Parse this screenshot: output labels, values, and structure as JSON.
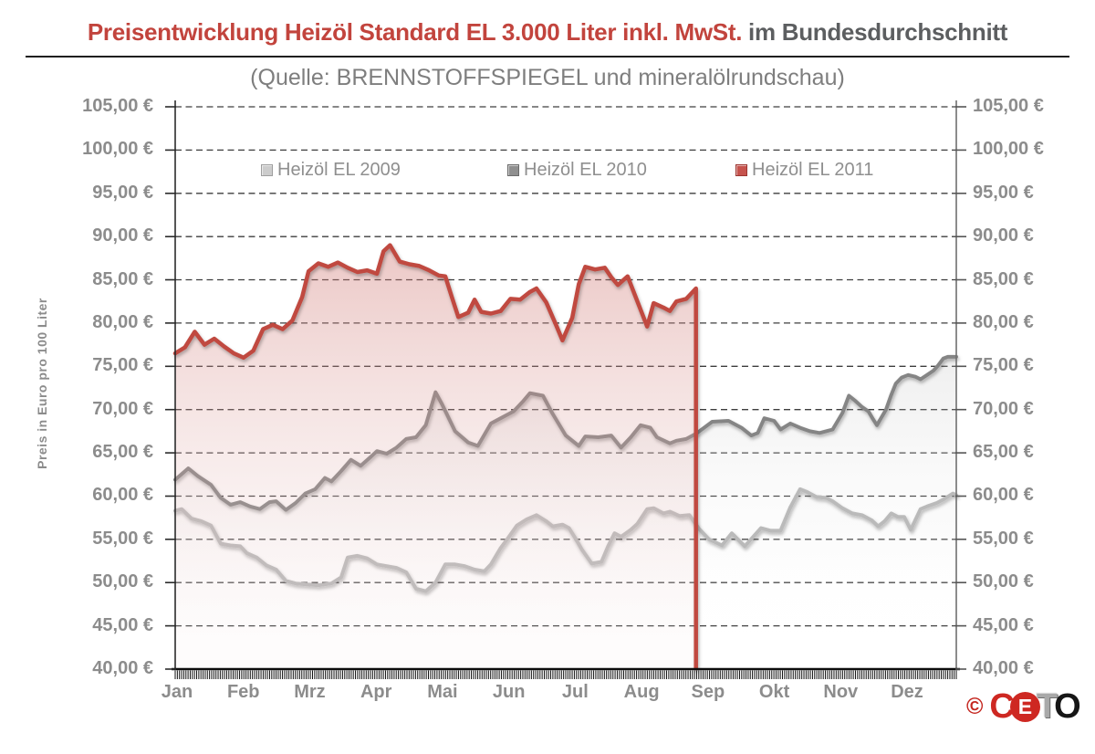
{
  "title": {
    "red_part": "Preisentwicklung Heizöl Standard EL 3.000 Liter inkl. MwSt.",
    "gray_part": " im Bundesdurchschnitt"
  },
  "subtitle": "(Quelle: BRENNSTOFFSPIEGEL und mineralölrundschau)",
  "y_axis": {
    "unit_label": "Preis in Euro pro 100 Liter",
    "tick_labels": [
      "105,00 €",
      "100,00 €",
      "95,00 €",
      "90,00 €",
      "85,00 €",
      "80,00 €",
      "75,00 €",
      "70,00 €",
      "65,00 €",
      "60,00 €",
      "55,00 €",
      "50,00 €",
      "45,00 €",
      "40,00 €"
    ],
    "min": 40,
    "max": 105,
    "step": 5
  },
  "x_axis": {
    "months": [
      "Jan",
      "Feb",
      "Mrz",
      "Apr",
      "Mai",
      "Jun",
      "Jul",
      "Aug",
      "Sep",
      "Okt",
      "Nov",
      "Dez"
    ]
  },
  "legend": [
    {
      "label": "Heizöl EL 2009",
      "line_color": "#b5b5b5",
      "swatch_bg": "#cccccc",
      "swatch_border": "#9e9e9e"
    },
    {
      "label": "Heizöl EL 2010",
      "line_color": "#858585",
      "swatch_bg": "#8f8f8f",
      "swatch_border": "#6b6b6b"
    },
    {
      "label": "Heizöl EL 2011",
      "line_color": "#c0483f",
      "swatch_bg": "#c6534d",
      "swatch_border": "#9c3531"
    }
  ],
  "logo": {
    "copyright": "©",
    "c": "C",
    "e": "E",
    "t": "T",
    "o": "O"
  },
  "chart_data": {
    "type": "area",
    "title": "Preisentwicklung Heizöl Standard EL 3.000 Liter inkl. MwSt. im Bundesdurchschnitt",
    "xlabel": "",
    "ylabel": "Preis in Euro pro 100 Liter",
    "ylim": [
      40,
      105
    ],
    "x_unit": "months, 0 = 1. Jan, 12 = 31. Dez",
    "grid": "dashed horizontal every 5 EUR",
    "legend_position": "top inside",
    "series": [
      {
        "name": "Heizöl EL 2009",
        "color": "#b5b5b5",
        "points": [
          [
            0,
            58.3
          ],
          [
            0.1,
            58.5
          ],
          [
            0.25,
            57.4
          ],
          [
            0.4,
            57.1
          ],
          [
            0.55,
            56.6
          ],
          [
            0.7,
            54.5
          ],
          [
            0.85,
            54.3
          ],
          [
            1,
            54.2
          ],
          [
            1.1,
            53.4
          ],
          [
            1.25,
            52.9
          ],
          [
            1.4,
            52
          ],
          [
            1.55,
            51.5
          ],
          [
            1.7,
            50.2
          ],
          [
            1.85,
            49.9
          ],
          [
            2,
            49.8
          ],
          [
            2.2,
            49.7
          ],
          [
            2.4,
            49.9
          ],
          [
            2.55,
            50.6
          ],
          [
            2.65,
            52.9
          ],
          [
            2.8,
            53.1
          ],
          [
            2.95,
            52.8
          ],
          [
            3.1,
            52.1
          ],
          [
            3.25,
            51.9
          ],
          [
            3.4,
            51.7
          ],
          [
            3.55,
            51.2
          ],
          [
            3.7,
            49.3
          ],
          [
            3.85,
            49
          ],
          [
            4,
            50
          ],
          [
            4.15,
            52.1
          ],
          [
            4.3,
            52.1
          ],
          [
            4.45,
            51.9
          ],
          [
            4.6,
            51.5
          ],
          [
            4.75,
            51.3
          ],
          [
            4.85,
            52.1
          ],
          [
            5,
            54
          ],
          [
            5.1,
            55
          ],
          [
            5.25,
            56.6
          ],
          [
            5.4,
            57.3
          ],
          [
            5.55,
            57.8
          ],
          [
            5.7,
            57.1
          ],
          [
            5.8,
            56.5
          ],
          [
            5.95,
            56.7
          ],
          [
            6.05,
            56.3
          ],
          [
            6.15,
            55.1
          ],
          [
            6.25,
            53.8
          ],
          [
            6.4,
            52.2
          ],
          [
            6.55,
            52.4
          ],
          [
            6.65,
            54.2
          ],
          [
            6.75,
            55.7
          ],
          [
            6.85,
            55.3
          ],
          [
            7,
            56.1
          ],
          [
            7.1,
            56.8
          ],
          [
            7.25,
            58.5
          ],
          [
            7.35,
            58.6
          ],
          [
            7.5,
            58
          ],
          [
            7.6,
            58.2
          ],
          [
            7.75,
            57.7
          ],
          [
            7.9,
            57.8
          ],
          [
            8.05,
            56.2
          ],
          [
            8.2,
            55
          ],
          [
            8.4,
            54.3
          ],
          [
            8.55,
            55.7
          ],
          [
            8.75,
            54.2
          ],
          [
            9,
            56.3
          ],
          [
            9.15,
            56
          ],
          [
            9.3,
            56
          ],
          [
            9.45,
            58.7
          ],
          [
            9.6,
            60.8
          ],
          [
            9.7,
            60.5
          ],
          [
            9.85,
            59.9
          ],
          [
            10,
            59.8
          ],
          [
            10.1,
            59.4
          ],
          [
            10.25,
            58.6
          ],
          [
            10.4,
            58
          ],
          [
            10.55,
            57.8
          ],
          [
            10.7,
            57.2
          ],
          [
            10.8,
            56.5
          ],
          [
            10.9,
            57.1
          ],
          [
            11,
            58
          ],
          [
            11.1,
            57.6
          ],
          [
            11.2,
            57.6
          ],
          [
            11.3,
            56.1
          ],
          [
            11.45,
            58.5
          ],
          [
            11.55,
            58.8
          ],
          [
            11.7,
            59.2
          ],
          [
            11.8,
            59.6
          ],
          [
            11.95,
            60.3
          ],
          [
            12,
            60.1
          ]
        ]
      },
      {
        "name": "Heizöl EL 2010",
        "color": "#858585",
        "points": [
          [
            0,
            61.9
          ],
          [
            0.2,
            63.2
          ],
          [
            0.35,
            62.3
          ],
          [
            0.55,
            61.3
          ],
          [
            0.7,
            59.8
          ],
          [
            0.85,
            59
          ],
          [
            1,
            59.3
          ],
          [
            1.15,
            58.8
          ],
          [
            1.3,
            58.5
          ],
          [
            1.45,
            59.3
          ],
          [
            1.55,
            59.4
          ],
          [
            1.7,
            58.4
          ],
          [
            1.85,
            59.2
          ],
          [
            2,
            60.3
          ],
          [
            2.15,
            60.8
          ],
          [
            2.3,
            62.1
          ],
          [
            2.4,
            61.7
          ],
          [
            2.55,
            62.9
          ],
          [
            2.7,
            64.2
          ],
          [
            2.85,
            63.5
          ],
          [
            3,
            64.5
          ],
          [
            3.1,
            65.2
          ],
          [
            3.25,
            64.9
          ],
          [
            3.4,
            65.6
          ],
          [
            3.55,
            66.6
          ],
          [
            3.7,
            66.8
          ],
          [
            3.85,
            68.2
          ],
          [
            4,
            72
          ],
          [
            4.1,
            70.6
          ],
          [
            4.3,
            67.5
          ],
          [
            4.5,
            66.2
          ],
          [
            4.65,
            65.8
          ],
          [
            4.85,
            68.4
          ],
          [
            5,
            69
          ],
          [
            5.2,
            69.8
          ],
          [
            5.35,
            71
          ],
          [
            5.45,
            71.9
          ],
          [
            5.65,
            71.6
          ],
          [
            5.8,
            69.5
          ],
          [
            6,
            67
          ],
          [
            6.2,
            65.8
          ],
          [
            6.3,
            66.9
          ],
          [
            6.5,
            66.8
          ],
          [
            6.7,
            67
          ],
          [
            6.85,
            65.6
          ],
          [
            7,
            66.8
          ],
          [
            7.15,
            68.2
          ],
          [
            7.3,
            67.9
          ],
          [
            7.4,
            66.8
          ],
          [
            7.6,
            66.1
          ],
          [
            7.7,
            66.4
          ],
          [
            7.85,
            66.6
          ],
          [
            8,
            67.2
          ],
          [
            8.25,
            68.6
          ],
          [
            8.5,
            68.7
          ],
          [
            8.7,
            67.9
          ],
          [
            8.85,
            67
          ],
          [
            8.95,
            67.3
          ],
          [
            9.05,
            69
          ],
          [
            9.2,
            68.7
          ],
          [
            9.3,
            67.7
          ],
          [
            9.45,
            68.4
          ],
          [
            9.6,
            67.9
          ],
          [
            9.75,
            67.5
          ],
          [
            9.9,
            67.3
          ],
          [
            10,
            67.5
          ],
          [
            10.1,
            67.7
          ],
          [
            10.25,
            69.6
          ],
          [
            10.35,
            71.6
          ],
          [
            10.45,
            71
          ],
          [
            10.55,
            70.3
          ],
          [
            10.65,
            69.8
          ],
          [
            10.72,
            68.9
          ],
          [
            10.78,
            68.2
          ],
          [
            10.85,
            69.1
          ],
          [
            10.92,
            70
          ],
          [
            11,
            71.7
          ],
          [
            11.07,
            73
          ],
          [
            11.16,
            73.7
          ],
          [
            11.26,
            74
          ],
          [
            11.37,
            73.8
          ],
          [
            11.45,
            73.5
          ],
          [
            11.55,
            74
          ],
          [
            11.65,
            74.5
          ],
          [
            11.72,
            75.1
          ],
          [
            11.8,
            75.9
          ],
          [
            11.87,
            76.1
          ],
          [
            12,
            76.1
          ]
        ]
      },
      {
        "name": "Heizöl EL 2011",
        "color": "#c0483f",
        "ends_with_vertical_drop": true,
        "points": [
          [
            0,
            76.5
          ],
          [
            0.15,
            77.2
          ],
          [
            0.3,
            79
          ],
          [
            0.45,
            77.5
          ],
          [
            0.6,
            78.2
          ],
          [
            0.75,
            77.3
          ],
          [
            0.9,
            76.5
          ],
          [
            1.05,
            76
          ],
          [
            1.2,
            76.8
          ],
          [
            1.35,
            79.3
          ],
          [
            1.5,
            79.8
          ],
          [
            1.65,
            79.3
          ],
          [
            1.8,
            80.3
          ],
          [
            1.95,
            83
          ],
          [
            2.05,
            86
          ],
          [
            2.2,
            86.9
          ],
          [
            2.35,
            86.5
          ],
          [
            2.5,
            87
          ],
          [
            2.65,
            86.4
          ],
          [
            2.8,
            85.9
          ],
          [
            2.95,
            86.1
          ],
          [
            3.1,
            85.7
          ],
          [
            3.2,
            88.3
          ],
          [
            3.3,
            89
          ],
          [
            3.45,
            87.1
          ],
          [
            3.6,
            86.8
          ],
          [
            3.75,
            86.6
          ],
          [
            3.9,
            86.1
          ],
          [
            4.05,
            85.5
          ],
          [
            4.15,
            85.4
          ],
          [
            4.25,
            83
          ],
          [
            4.35,
            80.7
          ],
          [
            4.5,
            81.2
          ],
          [
            4.6,
            82.7
          ],
          [
            4.7,
            81.3
          ],
          [
            4.85,
            81.1
          ],
          [
            5,
            81.4
          ],
          [
            5.15,
            82.8
          ],
          [
            5.3,
            82.7
          ],
          [
            5.45,
            83.6
          ],
          [
            5.55,
            84
          ],
          [
            5.7,
            82.4
          ],
          [
            5.85,
            79.8
          ],
          [
            5.95,
            78
          ],
          [
            6.1,
            80.6
          ],
          [
            6.2,
            84.5
          ],
          [
            6.3,
            86.5
          ],
          [
            6.45,
            86.2
          ],
          [
            6.6,
            86.4
          ],
          [
            6.7,
            85.3
          ],
          [
            6.8,
            84.4
          ],
          [
            6.95,
            85.4
          ],
          [
            7.1,
            82.5
          ],
          [
            7.25,
            79.6
          ],
          [
            7.35,
            82.3
          ],
          [
            7.5,
            81.8
          ],
          [
            7.6,
            81.4
          ],
          [
            7.7,
            82.5
          ],
          [
            7.85,
            82.8
          ],
          [
            8,
            84
          ]
        ]
      }
    ]
  }
}
